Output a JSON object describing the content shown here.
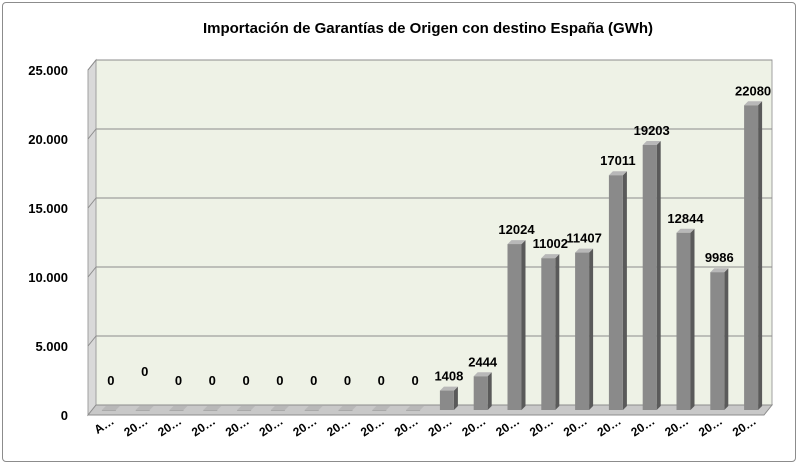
{
  "chart_data": {
    "type": "bar",
    "title": "Importación de Garantías de Origen con destino España (GWh)",
    "xlabel": "",
    "ylabel": "",
    "categories": [
      "A…",
      "20…",
      "20…",
      "20…",
      "20…",
      "20…",
      "20…",
      "20…",
      "20…",
      "20…",
      "20…",
      "20…",
      "20…",
      "20…",
      "20…",
      "20…",
      "20…",
      "20…",
      "20…",
      "20…"
    ],
    "values": [
      0,
      0,
      0,
      0,
      0,
      0,
      0,
      0,
      0,
      0,
      1408,
      2444,
      12024,
      11002,
      11407,
      17011,
      19203,
      12844,
      9986,
      22080
    ],
    "data_labels": [
      "0",
      "0",
      "0",
      "0",
      "0",
      "0",
      "0",
      "0",
      "0",
      "0",
      "1408",
      "2444",
      "12024",
      "11002",
      "11407",
      "17011",
      "19203",
      "12844",
      "9986",
      "22080"
    ],
    "y_ticks": [
      0,
      5000,
      10000,
      15000,
      20000,
      25000
    ],
    "y_tick_labels": [
      "0",
      "5.000",
      "10.000",
      "15.000",
      "20.000",
      "25.000"
    ],
    "ylim": [
      0,
      25000
    ],
    "grid": true,
    "legend": "none",
    "colors": {
      "bar_front": "#8a8a8a",
      "bar_top": "#b8b8b8",
      "bar_side": "#5a5a5a",
      "wall": "#eef2e6",
      "wall_side": "#d9d9d9",
      "floor": "#c8c8c8",
      "gridline": "#8c8c8c"
    }
  }
}
